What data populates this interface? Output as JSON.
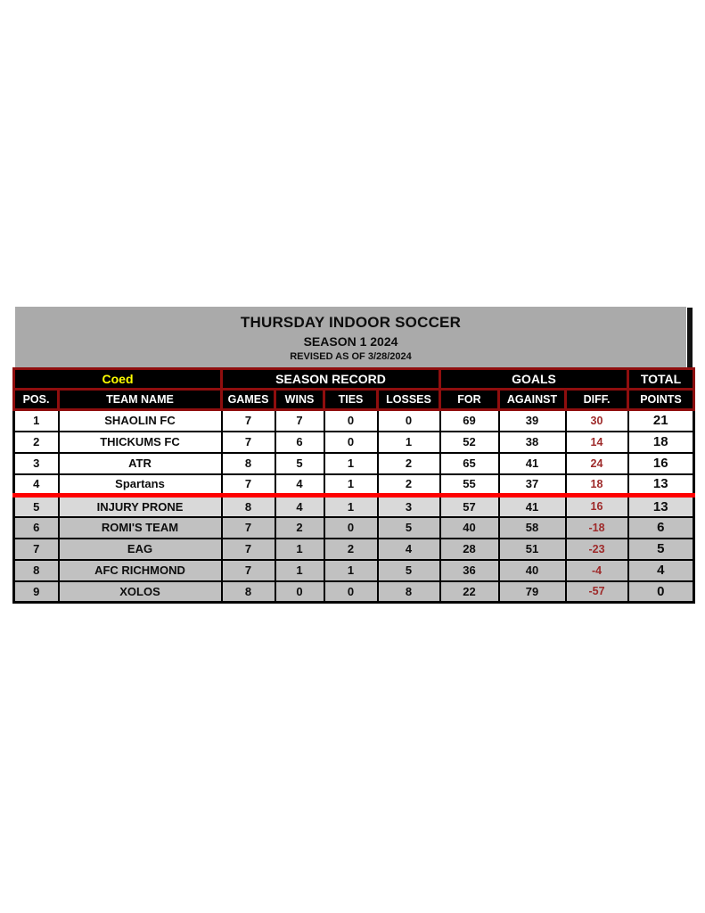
{
  "title_block": {
    "title": "THURSDAY INDOOR SOCCER",
    "subtitle": "SEASON 1 2024",
    "revised": "REVISED AS OF 3/28/2024",
    "background": "#aaaaaa"
  },
  "table": {
    "group_headers": [
      {
        "label": "Coed",
        "colspan": 2,
        "text_color": "#ffff00"
      },
      {
        "label": "SEASON RECORD",
        "colspan": 4,
        "text_color": "#ffffff"
      },
      {
        "label": "GOALS",
        "colspan": 3,
        "text_color": "#ffffff"
      },
      {
        "label": "TOTAL",
        "colspan": 1,
        "text_color": "#ffffff"
      }
    ],
    "columns": [
      "POS.",
      "TEAM NAME",
      "GAMES",
      "WINS",
      "TIES",
      "LOSSES",
      "FOR",
      "AGAINST",
      "DIFF.",
      "POINTS"
    ],
    "rows": [
      {
        "pos": "1",
        "team": "SHAOLIN FC",
        "games": "7",
        "wins": "7",
        "ties": "0",
        "losses": "0",
        "for": "69",
        "against": "39",
        "diff": "30",
        "points": "21",
        "section": "top"
      },
      {
        "pos": "2",
        "team": "THICKUMS FC",
        "games": "7",
        "wins": "6",
        "ties": "0",
        "losses": "1",
        "for": "52",
        "against": "38",
        "diff": "14",
        "points": "18",
        "section": "top"
      },
      {
        "pos": "3",
        "team": "ATR",
        "games": "8",
        "wins": "5",
        "ties": "1",
        "losses": "2",
        "for": "65",
        "against": "41",
        "diff": "24",
        "points": "16",
        "section": "top"
      },
      {
        "pos": "4",
        "team": "Spartans",
        "games": "7",
        "wins": "4",
        "ties": "1",
        "losses": "2",
        "for": "55",
        "against": "37",
        "diff": "18",
        "points": "13",
        "section": "top"
      },
      {
        "pos": "5",
        "team": "INJURY PRONE",
        "games": "8",
        "wins": "4",
        "ties": "1",
        "losses": "3",
        "for": "57",
        "against": "41",
        "diff": "16",
        "points": "13",
        "section": "light",
        "cutline_above": true
      },
      {
        "pos": "6",
        "team": "ROMI'S TEAM",
        "games": "7",
        "wins": "2",
        "ties": "0",
        "losses": "5",
        "for": "40",
        "against": "58",
        "diff": "-18",
        "points": "6",
        "section": "gray"
      },
      {
        "pos": "7",
        "team": "EAG",
        "games": "7",
        "wins": "1",
        "ties": "2",
        "losses": "4",
        "for": "28",
        "against": "51",
        "diff": "-23",
        "points": "5",
        "section": "gray"
      },
      {
        "pos": "8",
        "team": "AFC RICHMOND",
        "games": "7",
        "wins": "1",
        "ties": "1",
        "losses": "5",
        "for": "36",
        "against": "40",
        "diff": "-4",
        "points": "4",
        "section": "gray"
      },
      {
        "pos": "9",
        "team": "XOLOS",
        "games": "8",
        "wins": "0",
        "ties": "0",
        "losses": "8",
        "for": "22",
        "against": "79",
        "diff": "-57",
        "points": "0",
        "section": "gray"
      }
    ],
    "colors": {
      "header_background": "#000000",
      "header_border": "#8f0e0e",
      "coed_text": "#ffff00",
      "diff_text": "#9e2a2a",
      "cutoff_line": "#fe0000",
      "row_top_bg": "#ffffff",
      "row_light_bg": "#d9d9d9",
      "row_gray_bg": "#c1c1c1"
    }
  }
}
